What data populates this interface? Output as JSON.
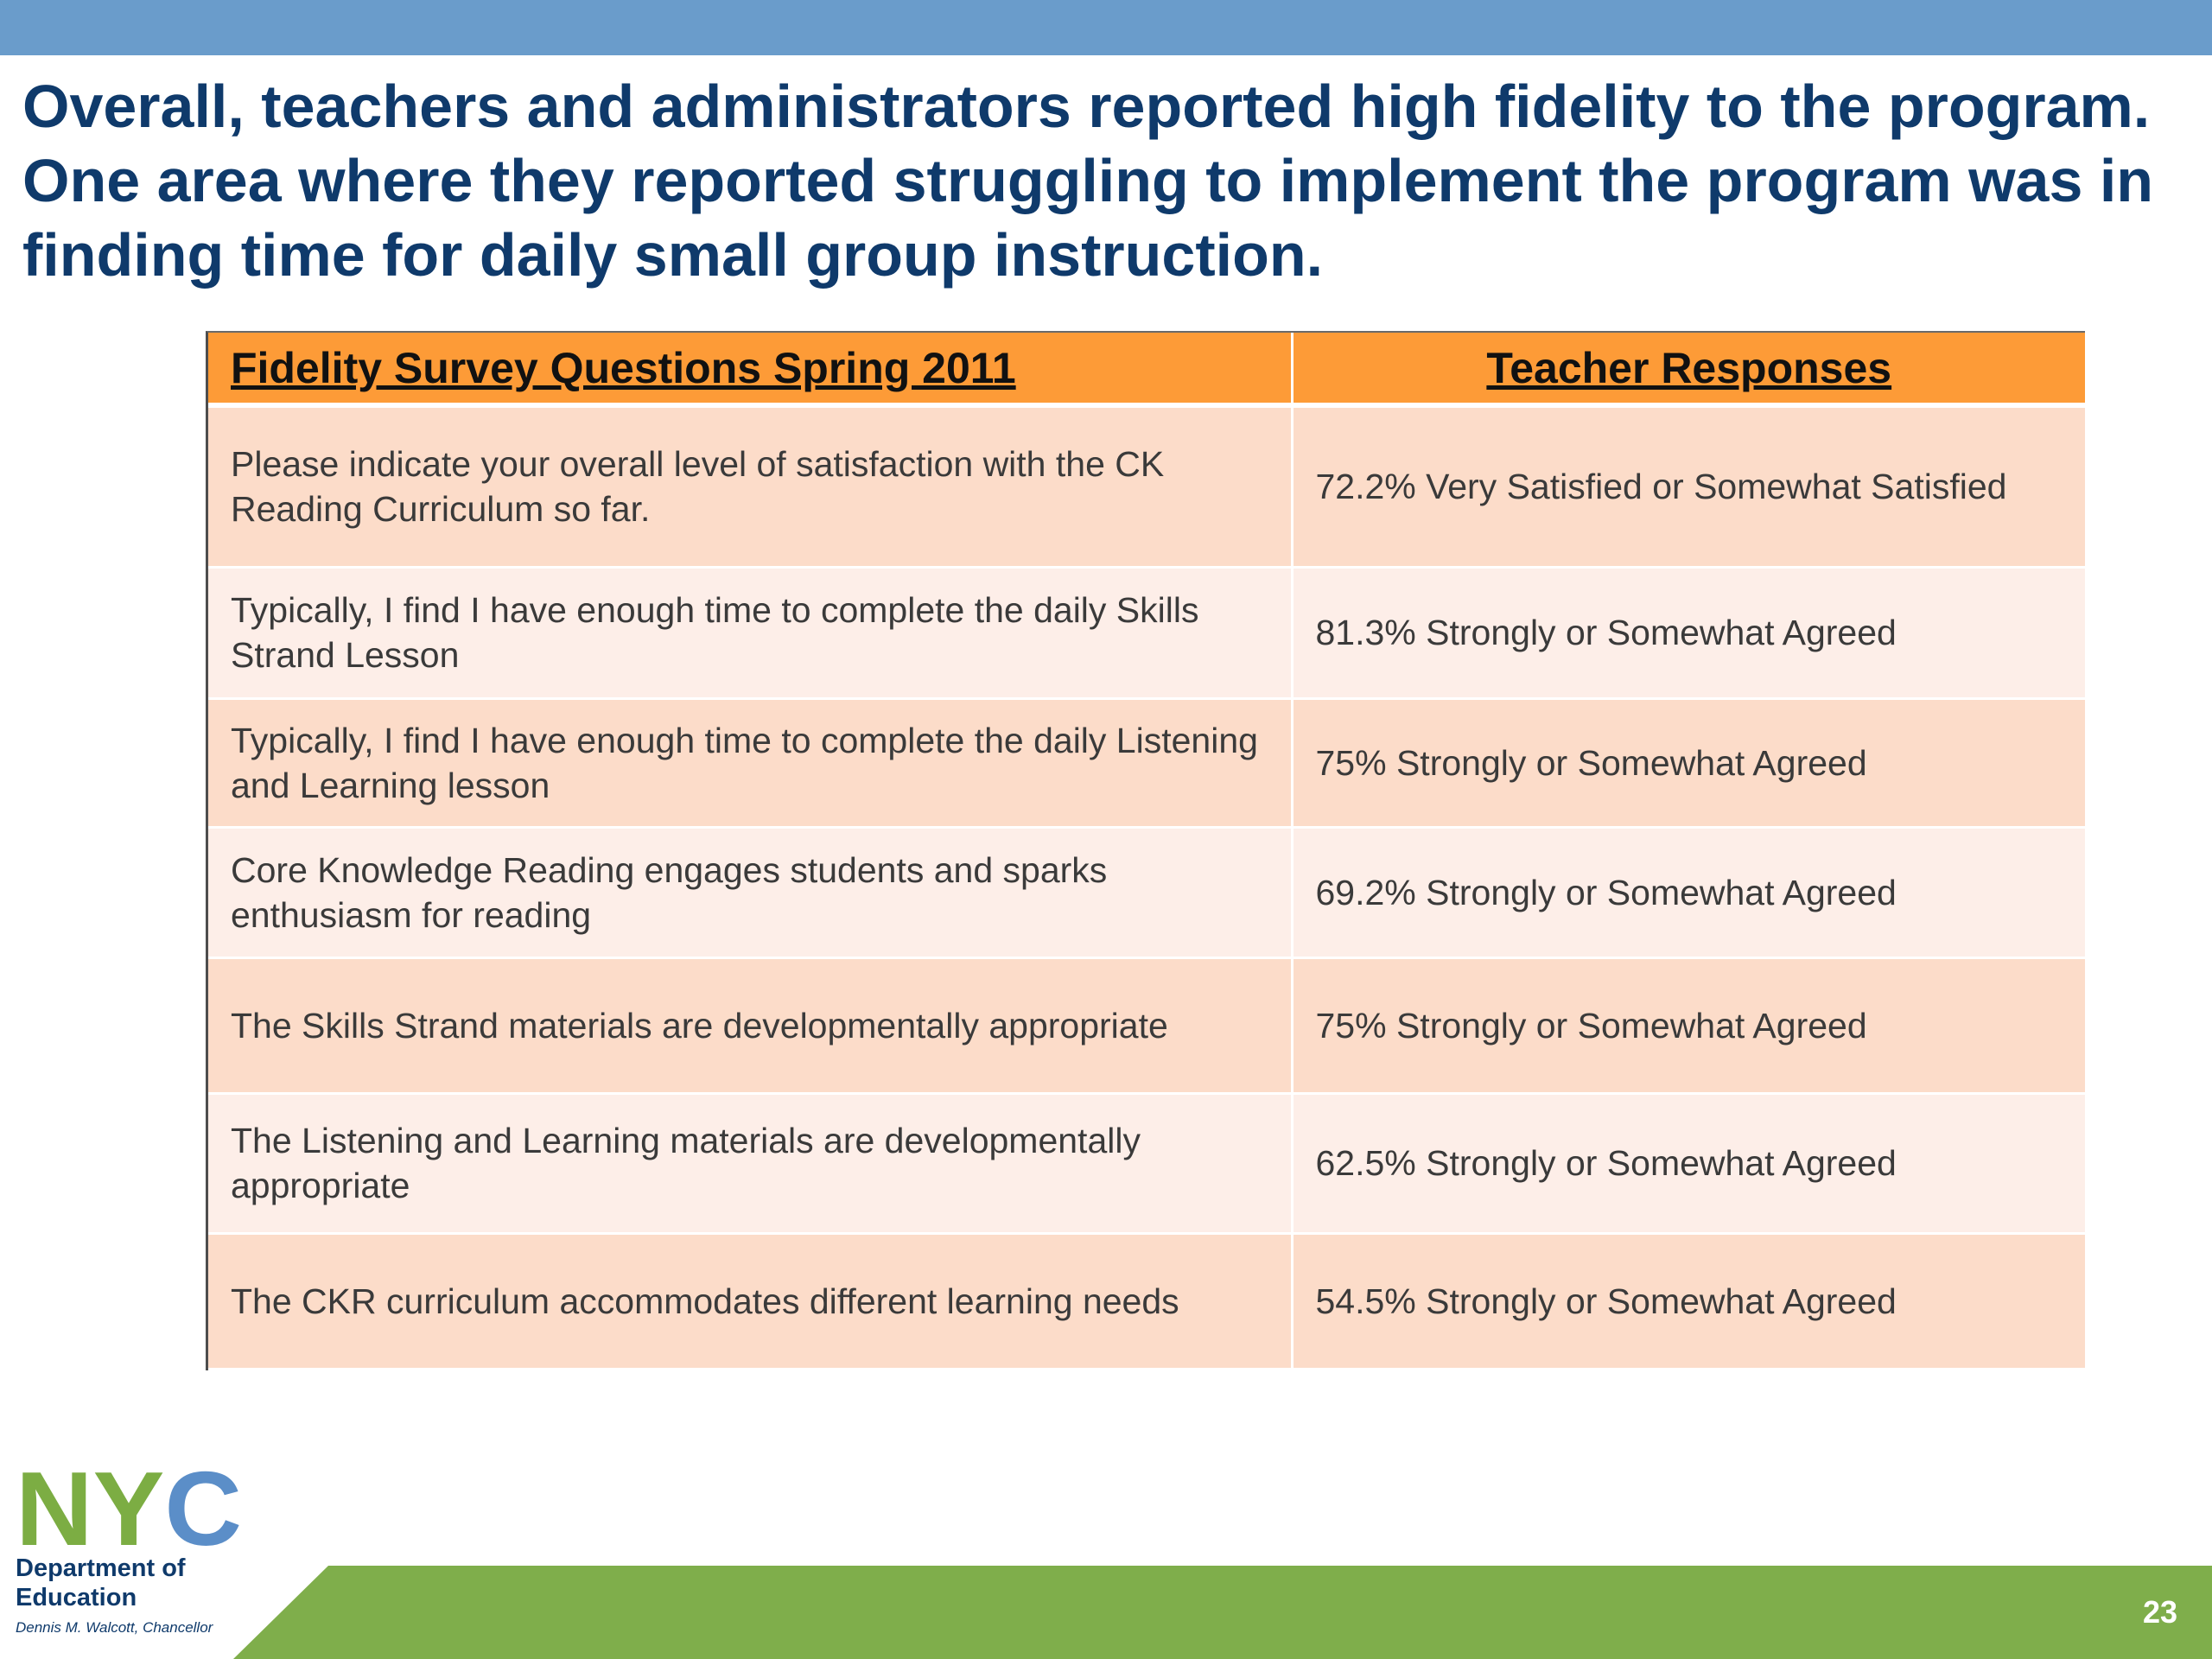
{
  "headline": "Overall, teachers and administrators reported high fidelity to the program.  One area where they reported struggling to implement the program was in finding time for daily small group instruction.",
  "table": {
    "headers": {
      "questions": "Fidelity Survey Questions Spring 2011",
      "responses": "Teacher Responses"
    },
    "rows": [
      {
        "question": "Please indicate your overall level of satisfaction with the CK Reading Curriculum so far.",
        "response": "72.2% Very Satisfied or Somewhat Satisfied"
      },
      {
        "question": "Typically, I find I have enough time to complete the daily Skills Strand Lesson",
        "response": "81.3% Strongly or Somewhat Agreed"
      },
      {
        "question": "Typically, I find I have enough time to complete the daily Listening and Learning lesson",
        "response": "75% Strongly or Somewhat Agreed"
      },
      {
        "question": "Core Knowledge Reading engages students and sparks enthusiasm for reading",
        "response": "69.2% Strongly or Somewhat Agreed"
      },
      {
        "question": "The Skills Strand materials are developmentally appropriate",
        "response": "75% Strongly or Somewhat Agreed"
      },
      {
        "question": "The Listening and Learning materials are developmentally appropriate",
        "response": "62.5% Strongly or Somewhat Agreed"
      },
      {
        "question": "The CKR curriculum accommodates different learning needs",
        "response": "54.5% Strongly or Somewhat Agreed"
      }
    ]
  },
  "logo": {
    "letters": "NYC",
    "department": "Department of Education",
    "chancellor": "Dennis M. Walcott, Chancellor"
  },
  "page_number": "23",
  "colors": {
    "top_band": "#6a9ccb",
    "headline": "#0f3a6b",
    "header_fill": "#fd9b37",
    "row_odd": "#fcdcc9",
    "row_even": "#fdeee8",
    "bottom_band": "#7fae4b",
    "logo_green": "#7cad43",
    "logo_blue": "#5b8ec8"
  }
}
